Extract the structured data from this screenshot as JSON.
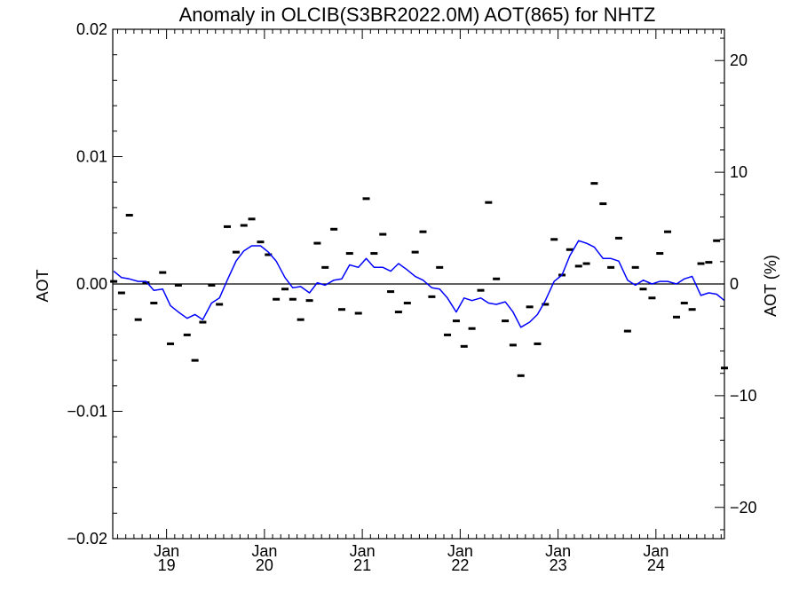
{
  "chart_data": {
    "type": "line",
    "title": "Anomaly in OLCIB(S3BR2022.0M) AOT(865) for NHTZ",
    "ylabel_left": "AOT",
    "ylabel_right": "AOT (%)",
    "ylim_left": [
      -0.02,
      0.02
    ],
    "ylim_right": [
      -22.8,
      22.8
    ],
    "xlim": [
      2018.45,
      2024.7
    ],
    "yticks_left": [
      {
        "value": 0.02,
        "label": "0.02"
      },
      {
        "value": 0.01,
        "label": "0.01"
      },
      {
        "value": 0.0,
        "label": "0.00"
      },
      {
        "value": -0.01,
        "label": "−0.01"
      },
      {
        "value": -0.02,
        "label": "−0.02"
      }
    ],
    "yticks_right": [
      {
        "value": 20,
        "label": "20"
      },
      {
        "value": 10,
        "label": "10"
      },
      {
        "value": 0,
        "label": "0"
      },
      {
        "value": -10,
        "label": "−10"
      },
      {
        "value": -20,
        "label": "−20"
      }
    ],
    "xticks": [
      {
        "value": 2019.0,
        "label1": "Jan",
        "label2": "19"
      },
      {
        "value": 2020.0,
        "label1": "Jan",
        "label2": "20"
      },
      {
        "value": 2021.0,
        "label1": "Jan",
        "label2": "21"
      },
      {
        "value": 2022.0,
        "label1": "Jan",
        "label2": "22"
      },
      {
        "value": 2023.0,
        "label1": "Jan",
        "label2": "23"
      },
      {
        "value": 2024.0,
        "label1": "Jan",
        "label2": "24"
      }
    ],
    "zero_line": 0.0,
    "grid": false,
    "legend": "none",
    "colors": {
      "line": "#0000ff",
      "markers": "#000000",
      "zero": "#000000"
    },
    "series": [
      {
        "kind": "monthly_markers",
        "x": [
          2018.46,
          2018.54,
          2018.62,
          2018.71,
          2018.79,
          2018.87,
          2018.96,
          2019.04,
          2019.12,
          2019.21,
          2019.29,
          2019.37,
          2019.46,
          2019.54,
          2019.62,
          2019.71,
          2019.79,
          2019.87,
          2019.96,
          2020.04,
          2020.12,
          2020.21,
          2020.29,
          2020.37,
          2020.46,
          2020.54,
          2020.62,
          2020.71,
          2020.79,
          2020.87,
          2020.96,
          2021.04,
          2021.12,
          2021.21,
          2021.29,
          2021.37,
          2021.46,
          2021.54,
          2021.62,
          2021.71,
          2021.79,
          2021.87,
          2021.96,
          2022.04,
          2022.12,
          2022.21,
          2022.29,
          2022.37,
          2022.46,
          2022.54,
          2022.62,
          2022.71,
          2022.79,
          2022.87,
          2022.96,
          2023.04,
          2023.12,
          2023.21,
          2023.29,
          2023.37,
          2023.46,
          2023.54,
          2023.62,
          2023.71,
          2023.79,
          2023.87,
          2023.96,
          2024.04,
          2024.12,
          2024.21,
          2024.29,
          2024.37,
          2024.46,
          2024.54,
          2024.62,
          2024.7
        ],
        "y": [
          0.0002,
          -0.0007,
          0.0054,
          -0.0028,
          0.0001,
          -0.0015,
          0.0009,
          -0.0047,
          -0.0001,
          -0.004,
          -0.006,
          -0.003,
          -0.0001,
          -0.0016,
          0.0045,
          0.0025,
          0.0046,
          0.0051,
          0.0033,
          0.0023,
          -0.0012,
          -0.0004,
          -0.0012,
          -0.0028,
          -0.0013,
          0.0032,
          0.0013,
          0.0043,
          -0.002,
          0.0024,
          -0.0023,
          0.0067,
          0.0024,
          0.0039,
          -0.0006,
          -0.0022,
          -0.0015,
          0.0025,
          0.0041,
          -0.001,
          0.0013,
          -0.004,
          -0.0029,
          -0.0049,
          -0.0035,
          -0.0005,
          0.0064,
          0.0004,
          -0.0029,
          -0.0048,
          -0.0072,
          -0.0018,
          -0.0047,
          -0.0016,
          0.0035,
          0.0007,
          0.0027,
          0.0014,
          0.0016,
          0.0079,
          0.0063,
          0.0013,
          0.0036,
          -0.0037,
          0.0013,
          -0.0004,
          -0.0011,
          0.0024,
          0.0041,
          -0.0026,
          -0.0015,
          -0.002,
          0.0016,
          0.0017,
          0.0034,
          -0.0066
        ]
      },
      {
        "kind": "smoothed_line",
        "x": [
          2018.46,
          2018.54,
          2018.62,
          2018.71,
          2018.79,
          2018.87,
          2018.96,
          2019.04,
          2019.12,
          2019.21,
          2019.29,
          2019.37,
          2019.46,
          2019.54,
          2019.62,
          2019.71,
          2019.79,
          2019.87,
          2019.96,
          2020.04,
          2020.12,
          2020.21,
          2020.29,
          2020.37,
          2020.46,
          2020.54,
          2020.62,
          2020.71,
          2020.79,
          2020.87,
          2020.96,
          2021.04,
          2021.12,
          2021.21,
          2021.29,
          2021.37,
          2021.46,
          2021.54,
          2021.62,
          2021.71,
          2021.79,
          2021.87,
          2021.96,
          2022.04,
          2022.12,
          2022.21,
          2022.29,
          2022.37,
          2022.46,
          2022.54,
          2022.62,
          2022.71,
          2022.79,
          2022.87,
          2022.96,
          2023.04,
          2023.12,
          2023.21,
          2023.29,
          2023.37,
          2023.46,
          2023.54,
          2023.62,
          2023.71,
          2023.79,
          2023.87,
          2023.96,
          2024.04,
          2024.12,
          2024.21,
          2024.29,
          2024.37,
          2024.46,
          2024.54,
          2024.62,
          2024.7
        ],
        "y": [
          0.001,
          0.0005,
          0.0004,
          0.0002,
          0.0002,
          -0.0005,
          -0.0004,
          -0.0017,
          -0.0022,
          -0.0027,
          -0.0024,
          -0.0028,
          -0.0015,
          -0.0011,
          0.0003,
          0.0018,
          0.0026,
          0.003,
          0.003,
          0.0025,
          0.0018,
          0.0005,
          -0.0003,
          -0.0002,
          -0.0007,
          0.0001,
          -0.0001,
          0.0003,
          0.0004,
          0.0015,
          0.0013,
          0.002,
          0.0013,
          0.0013,
          0.001,
          0.0016,
          0.0011,
          0.0006,
          0.0003,
          -0.0003,
          -0.0004,
          -0.0011,
          -0.0022,
          -0.0011,
          -0.0013,
          -0.0011,
          -0.0015,
          -0.0016,
          -0.0014,
          -0.0022,
          -0.0034,
          -0.003,
          -0.0024,
          -0.0013,
          0.0002,
          0.0007,
          0.0022,
          0.0034,
          0.0032,
          0.0029,
          0.002,
          0.002,
          0.0018,
          0.0003,
          -0.0001,
          0.0003,
          0.0,
          0.0002,
          0.0002,
          0.0,
          0.0004,
          0.0006,
          -0.0009,
          -0.0007,
          -0.0008,
          -0.0013
        ]
      }
    ]
  }
}
